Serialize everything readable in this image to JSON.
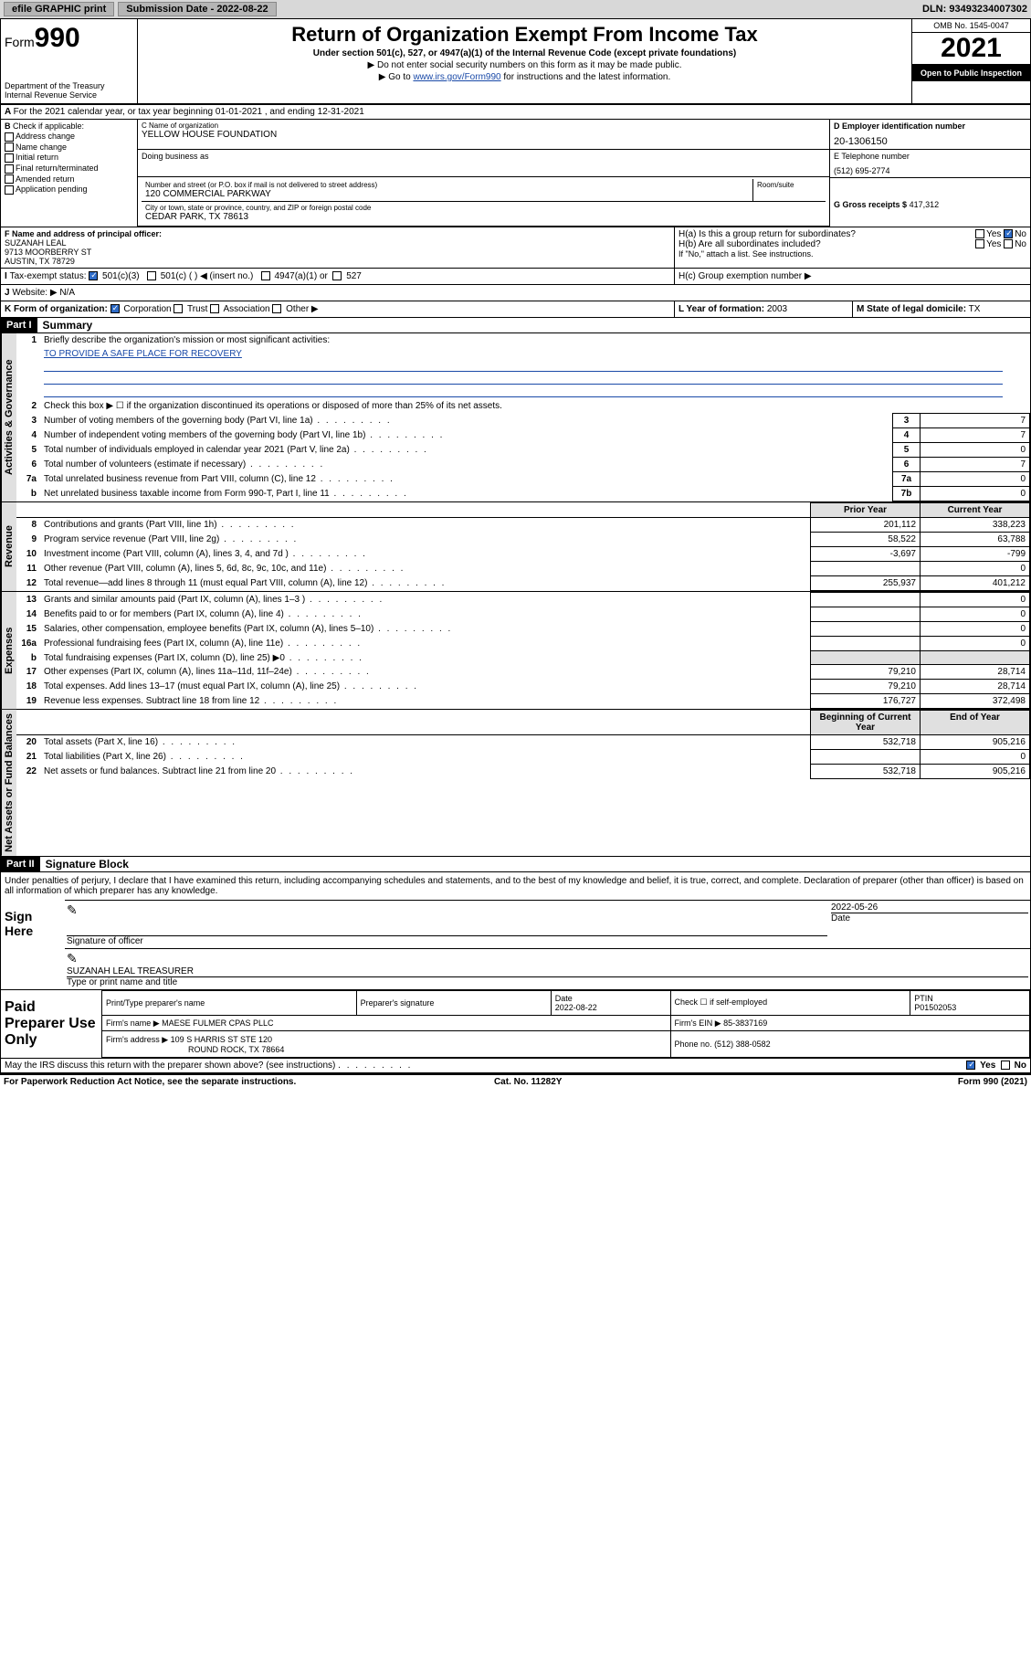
{
  "topbar": {
    "btn1": "efile GRAPHIC print",
    "sublabel": "Submission Date - 2022-08-22",
    "dln": "DLN: 93493234007302"
  },
  "header": {
    "form_label": "Form",
    "form_no": "990",
    "dept": "Department of the Treasury",
    "irs": "Internal Revenue Service",
    "title": "Return of Organization Exempt From Income Tax",
    "sub": "Under section 501(c), 527, or 4947(a)(1) of the Internal Revenue Code (except private foundations)",
    "note1": "▶ Do not enter social security numbers on this form as it may be made public.",
    "note2_pre": "▶ Go to ",
    "note2_link": "www.irs.gov/Form990",
    "note2_post": " for instructions and the latest information.",
    "omb": "OMB No. 1545-0047",
    "year": "2021",
    "open": "Open to Public Inspection"
  },
  "A": "For the 2021 calendar year, or tax year beginning 01-01-2021  , and ending 12-31-2021",
  "B": {
    "label": "Check if applicable:",
    "opts": [
      "Address change",
      "Name change",
      "Initial return",
      "Final return/terminated",
      "Amended return",
      "Application pending"
    ]
  },
  "C": {
    "lab1": "C Name of organization",
    "name": "YELLOW HOUSE FOUNDATION",
    "dba_lab": "Doing business as",
    "addr_lab": "Number and street (or P.O. box if mail is not delivered to street address)",
    "room_lab": "Room/suite",
    "street": "120 COMMERCIAL PARKWAY",
    "city_lab": "City or town, state or province, country, and ZIP or foreign postal code",
    "city": "CEDAR PARK, TX  78613"
  },
  "D": {
    "lab": "D Employer identification number",
    "val": "20-1306150"
  },
  "E": {
    "lab": "E Telephone number",
    "val": "(512) 695-2774"
  },
  "G": {
    "lab": "G Gross receipts $",
    "val": "417,312"
  },
  "F": {
    "lab": "F  Name and address of principal officer:",
    "name": "SUZANAH LEAL",
    "street": "9713 MOORBERRY ST",
    "city": "AUSTIN, TX  78729"
  },
  "H": {
    "a": "H(a)  Is this a group return for subordinates?",
    "b": "H(b)  Are all subordinates included?",
    "bnote": "If \"No,\" attach a list. See instructions.",
    "c": "H(c)  Group exemption number ▶",
    "yes": "Yes",
    "no": "No"
  },
  "I": {
    "lab": "Tax-exempt status:",
    "o1": "501(c)(3)",
    "o2": "501(c) (  ) ◀ (insert no.)",
    "o3": "4947(a)(1) or",
    "o4": "527"
  },
  "J": {
    "lab": "Website: ▶",
    "val": "N/A"
  },
  "K": {
    "lab": "K Form of organization:",
    "o1": "Corporation",
    "o2": "Trust",
    "o3": "Association",
    "o4": "Other ▶"
  },
  "L": {
    "lab": "L Year of formation:",
    "val": "2003"
  },
  "M": {
    "lab": "M State of legal domicile:",
    "val": "TX"
  },
  "part1": {
    "bar": "Part I",
    "title": "Summary"
  },
  "summary": {
    "q1": "Briefly describe the organization's mission or most significant activities:",
    "mission": "TO PROVIDE A SAFE PLACE FOR RECOVERY",
    "q2": "Check this box ▶ ☐  if the organization discontinued its operations or disposed of more than 25% of its net assets.",
    "lines": [
      {
        "n": "3",
        "d": "Number of voting members of the governing body (Part VI, line 1a)",
        "box": "3",
        "v": "7"
      },
      {
        "n": "4",
        "d": "Number of independent voting members of the governing body (Part VI, line 1b)",
        "box": "4",
        "v": "7"
      },
      {
        "n": "5",
        "d": "Total number of individuals employed in calendar year 2021 (Part V, line 2a)",
        "box": "5",
        "v": "0"
      },
      {
        "n": "6",
        "d": "Total number of volunteers (estimate if necessary)",
        "box": "6",
        "v": "7"
      },
      {
        "n": "7a",
        "d": "Total unrelated business revenue from Part VIII, column (C), line 12",
        "box": "7a",
        "v": "0"
      },
      {
        "n": "b",
        "d": "Net unrelated business taxable income from Form 990-T, Part I, line 11",
        "box": "7b",
        "v": "0"
      }
    ],
    "col_prior": "Prior Year",
    "col_curr": "Current Year",
    "rev": [
      {
        "n": "8",
        "d": "Contributions and grants (Part VIII, line 1h)",
        "p": "201,112",
        "c": "338,223"
      },
      {
        "n": "9",
        "d": "Program service revenue (Part VIII, line 2g)",
        "p": "58,522",
        "c": "63,788"
      },
      {
        "n": "10",
        "d": "Investment income (Part VIII, column (A), lines 3, 4, and 7d )",
        "p": "-3,697",
        "c": "-799"
      },
      {
        "n": "11",
        "d": "Other revenue (Part VIII, column (A), lines 5, 6d, 8c, 9c, 10c, and 11e)",
        "p": "",
        "c": "0"
      },
      {
        "n": "12",
        "d": "Total revenue—add lines 8 through 11 (must equal Part VIII, column (A), line 12)",
        "p": "255,937",
        "c": "401,212"
      }
    ],
    "exp": [
      {
        "n": "13",
        "d": "Grants and similar amounts paid (Part IX, column (A), lines 1–3 )",
        "p": "",
        "c": "0"
      },
      {
        "n": "14",
        "d": "Benefits paid to or for members (Part IX, column (A), line 4)",
        "p": "",
        "c": "0"
      },
      {
        "n": "15",
        "d": "Salaries, other compensation, employee benefits (Part IX, column (A), lines 5–10)",
        "p": "",
        "c": "0"
      },
      {
        "n": "16a",
        "d": "Professional fundraising fees (Part IX, column (A), line 11e)",
        "p": "",
        "c": "0"
      },
      {
        "n": "b",
        "d": "Total fundraising expenses (Part IX, column (D), line 25) ▶0",
        "p": "__shade__",
        "c": "__shade__"
      },
      {
        "n": "17",
        "d": "Other expenses (Part IX, column (A), lines 11a–11d, 11f–24e)",
        "p": "79,210",
        "c": "28,714"
      },
      {
        "n": "18",
        "d": "Total expenses. Add lines 13–17 (must equal Part IX, column (A), line 25)",
        "p": "79,210",
        "c": "28,714"
      },
      {
        "n": "19",
        "d": "Revenue less expenses. Subtract line 18 from line 12",
        "p": "176,727",
        "c": "372,498"
      }
    ],
    "col_begin": "Beginning of Current Year",
    "col_end": "End of Year",
    "net": [
      {
        "n": "20",
        "d": "Total assets (Part X, line 16)",
        "p": "532,718",
        "c": "905,216"
      },
      {
        "n": "21",
        "d": "Total liabilities (Part X, line 26)",
        "p": "",
        "c": "0"
      },
      {
        "n": "22",
        "d": "Net assets or fund balances. Subtract line 21 from line 20",
        "p": "532,718",
        "c": "905,216"
      }
    ],
    "side_act": "Activities & Governance",
    "side_rev": "Revenue",
    "side_exp": "Expenses",
    "side_net": "Net Assets or Fund Balances"
  },
  "part2": {
    "bar": "Part II",
    "title": "Signature Block"
  },
  "sig": {
    "decl": "Under penalties of perjury, I declare that I have examined this return, including accompanying schedules and statements, and to the best of my knowledge and belief, it is true, correct, and complete. Declaration of preparer (other than officer) is based on all information of which preparer has any knowledge.",
    "here": "Sign Here",
    "sigoff": "Signature of officer",
    "date": "2022-05-26",
    "datelab": "Date",
    "name": "SUZANAH LEAL TREASURER",
    "namelab": "Type or print name and title"
  },
  "prep": {
    "label": "Paid Preparer Use Only",
    "h1": "Print/Type preparer's name",
    "h2": "Preparer's signature",
    "h3": "Date",
    "h4": "Check ☐ if self-employed",
    "h5": "PTIN",
    "date": "2022-08-22",
    "ptin": "P01502053",
    "firmname_lab": "Firm's name    ▶",
    "firmname": "MAESE FULMER CPAS PLLC",
    "ein_lab": "Firm's EIN ▶",
    "ein": "85-3837169",
    "addr_lab": "Firm's address ▶",
    "addr1": "109 S HARRIS ST STE 120",
    "addr2": "ROUND ROCK, TX  78664",
    "phone_lab": "Phone no.",
    "phone": "(512) 388-0582"
  },
  "discuss": {
    "q": "May the IRS discuss this return with the preparer shown above? (see instructions)",
    "yes": "Yes",
    "no": "No"
  },
  "footer": {
    "l": "For Paperwork Reduction Act Notice, see the separate instructions.",
    "c": "Cat. No. 11282Y",
    "r": "Form 990 (2021)"
  }
}
